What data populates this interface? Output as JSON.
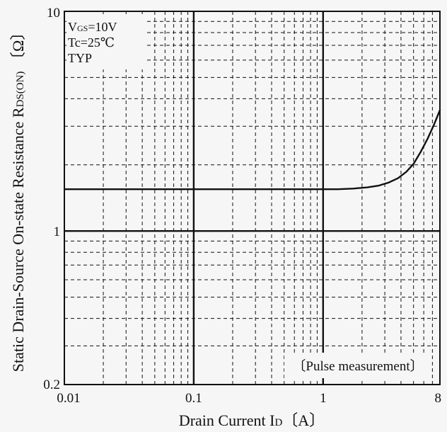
{
  "chart_data": {
    "type": "line",
    "title": "",
    "xlabel": {
      "main": "Drain Current  I",
      "sub": "D",
      "unit": "〔A〕"
    },
    "ylabel": {
      "main": "Static Drain-Source On-state Resistance  R",
      "sub": "DS(ON)",
      "unit": " 〔Ω〕"
    },
    "x_scale": "log",
    "y_scale": "log",
    "xlim": [
      0.01,
      8
    ],
    "ylim": [
      0.2,
      10
    ],
    "x_ticks": [
      {
        "value": 0.01,
        "label": "0.01"
      },
      {
        "value": 0.1,
        "label": "0.1"
      },
      {
        "value": 1,
        "label": "1"
      },
      {
        "value": 8,
        "label": "8"
      }
    ],
    "y_ticks": [
      {
        "value": 10,
        "label": "10"
      },
      {
        "value": 1,
        "label": "1"
      },
      {
        "value": 0.2,
        "label": "0.2"
      }
    ],
    "grid": true,
    "conditions": [
      {
        "main": "V",
        "sub": "GS",
        "rest": "=10V"
      },
      {
        "main": "Tc=25℃",
        "sub": "",
        "rest": ""
      },
      {
        "main": "TYP",
        "sub": "",
        "rest": ""
      }
    ],
    "annotation": "〔Pulse measurement〕",
    "series": [
      {
        "x": [
          0.01,
          0.1,
          1.0,
          1.3,
          1.7,
          2.2,
          2.7,
          3.2,
          3.8,
          4.4,
          5.0,
          5.7,
          6.4,
          7.2,
          8.0
        ],
        "y": [
          1.55,
          1.55,
          1.55,
          1.55,
          1.56,
          1.58,
          1.61,
          1.66,
          1.74,
          1.86,
          2.02,
          2.3,
          2.62,
          3.05,
          3.55
        ]
      }
    ]
  }
}
